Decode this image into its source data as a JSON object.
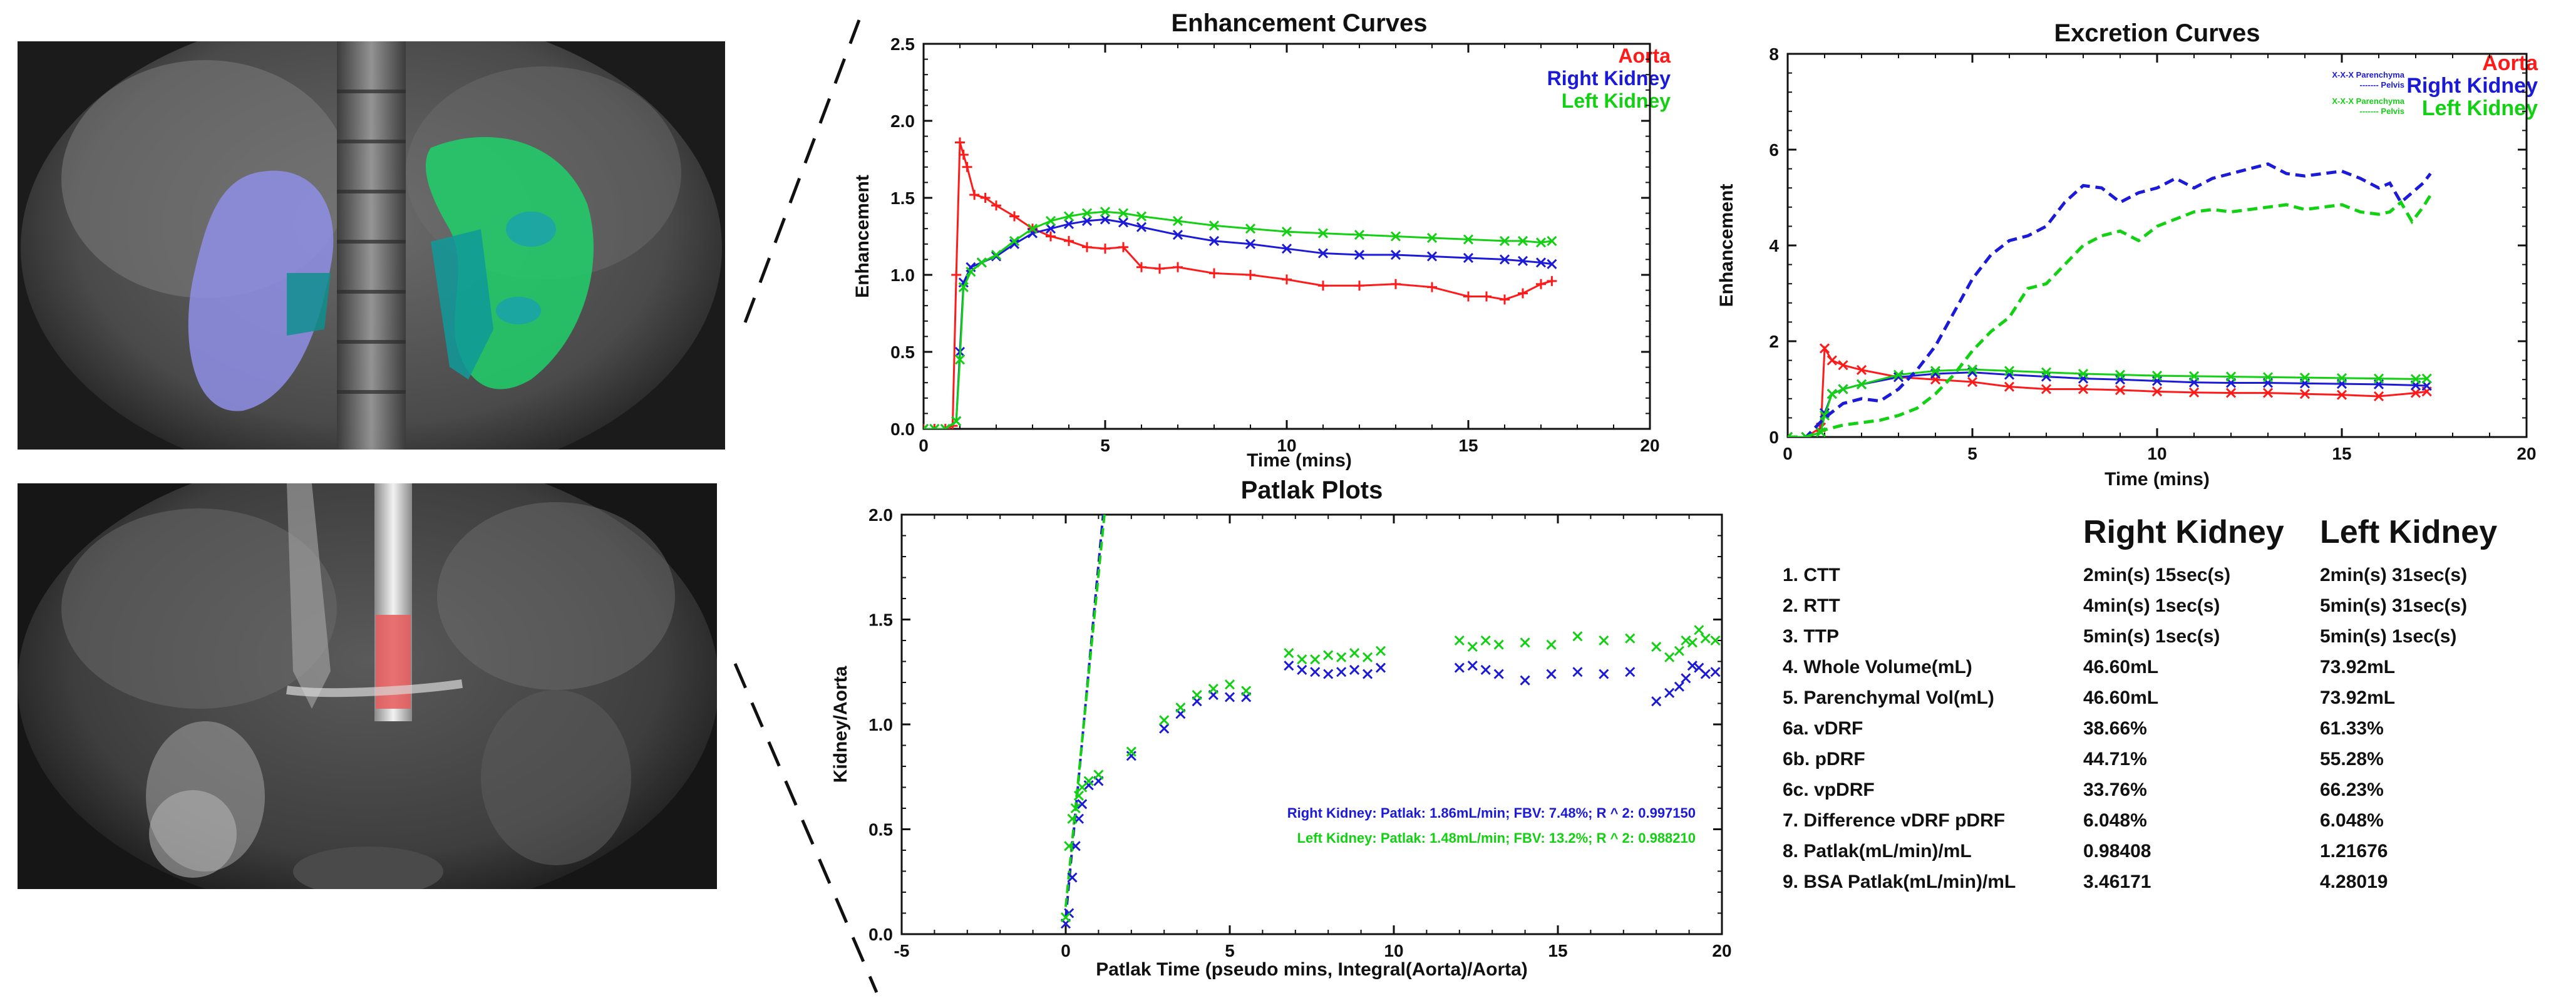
{
  "images": [
    {
      "name": "mri-coronal-kidneys",
      "labels": []
    },
    {
      "name": "mri-coronal-aorta",
      "labels": []
    }
  ],
  "colors": {
    "aorta": "#ff1a1a",
    "right_kidney": "#1a1ad8",
    "left_kidney": "#12d012"
  },
  "chart_data": [
    {
      "id": "enhancement",
      "type": "line",
      "title": "Enhancement Curves",
      "xlabel": "Time (mins)",
      "ylabel": "Enhancement",
      "xlim": [
        0,
        20
      ],
      "ylim": [
        0,
        2.5
      ],
      "xticks": [
        0,
        5,
        10,
        15,
        20
      ],
      "yticks": [
        0.0,
        0.5,
        1.0,
        1.5,
        2.0,
        2.5
      ],
      "xtick_labels": [
        "0",
        "5",
        "10",
        "15",
        "20"
      ],
      "ytick_labels": [
        "0.0",
        "0.5",
        "1.0",
        "1.5",
        "2.0",
        "2.5"
      ],
      "legend": [
        "Aorta",
        "Right Kidney",
        "Left Kidney"
      ],
      "series": [
        {
          "name": "Aorta",
          "color": "#ff1a1a",
          "marker": "+",
          "x": [
            0,
            0.3,
            0.6,
            0.8,
            0.9,
            1.0,
            1.1,
            1.2,
            1.4,
            1.7,
            2.0,
            2.5,
            3.0,
            3.5,
            4.0,
            4.5,
            5.0,
            5.5,
            6.0,
            6.5,
            7.0,
            8.0,
            9.0,
            10.0,
            11.0,
            12.0,
            13.0,
            14.0,
            15.0,
            15.5,
            16.0,
            16.5,
            17.0,
            17.3
          ],
          "y": [
            0,
            0,
            0,
            0.02,
            1.0,
            1.86,
            1.78,
            1.7,
            1.52,
            1.5,
            1.45,
            1.38,
            1.3,
            1.25,
            1.22,
            1.18,
            1.17,
            1.18,
            1.05,
            1.04,
            1.05,
            1.01,
            1.0,
            0.97,
            0.93,
            0.93,
            0.94,
            0.92,
            0.86,
            0.86,
            0.84,
            0.88,
            0.94,
            0.96
          ]
        },
        {
          "name": "Right Kidney",
          "color": "#1a1ad8",
          "marker": "x",
          "x": [
            0,
            0.3,
            0.6,
            0.9,
            1.0,
            1.1,
            1.3,
            1.6,
            2.0,
            2.5,
            3.0,
            3.5,
            4.0,
            4.5,
            5.0,
            5.5,
            6.0,
            7.0,
            8.0,
            9.0,
            10.0,
            11.0,
            12.0,
            13.0,
            14.0,
            15.0,
            16.0,
            16.5,
            17.0,
            17.3
          ],
          "y": [
            0,
            0,
            0,
            0.05,
            0.5,
            0.95,
            1.05,
            1.08,
            1.12,
            1.2,
            1.27,
            1.3,
            1.33,
            1.35,
            1.36,
            1.34,
            1.31,
            1.26,
            1.22,
            1.2,
            1.17,
            1.14,
            1.13,
            1.13,
            1.12,
            1.11,
            1.1,
            1.09,
            1.08,
            1.07
          ]
        },
        {
          "name": "Left Kidney",
          "color": "#12d012",
          "marker": "x",
          "x": [
            0,
            0.3,
            0.6,
            0.9,
            1.0,
            1.1,
            1.3,
            1.6,
            2.0,
            2.5,
            3.0,
            3.5,
            4.0,
            4.5,
            5.0,
            5.5,
            6.0,
            7.0,
            8.0,
            9.0,
            10.0,
            11.0,
            12.0,
            13.0,
            14.0,
            15.0,
            16.0,
            16.5,
            17.0,
            17.3
          ],
          "y": [
            0,
            0,
            0,
            0.05,
            0.45,
            0.92,
            1.02,
            1.08,
            1.13,
            1.22,
            1.3,
            1.35,
            1.38,
            1.4,
            1.41,
            1.4,
            1.38,
            1.35,
            1.32,
            1.3,
            1.28,
            1.27,
            1.26,
            1.25,
            1.24,
            1.23,
            1.22,
            1.22,
            1.21,
            1.22
          ]
        }
      ]
    },
    {
      "id": "excretion",
      "type": "line",
      "title": "Excretion Curves",
      "xlabel": "Time (mins)",
      "ylabel": "Enhancement",
      "xlim": [
        0,
        20
      ],
      "ylim": [
        0,
        8
      ],
      "xticks": [
        0,
        5,
        10,
        15,
        20
      ],
      "yticks": [
        0,
        2,
        4,
        6,
        8
      ],
      "xtick_labels": [
        "0",
        "5",
        "10",
        "15",
        "20"
      ],
      "ytick_labels": [
        "0",
        "2",
        "4",
        "6",
        "8"
      ],
      "legend": [
        "Aorta",
        "Right Kidney",
        "Left Kidney"
      ],
      "legend_small": [
        "X-X-X Parenchyma",
        "------- Pelvis",
        "X-X-X Parenchyma",
        "------- Pelvis"
      ],
      "series": [
        {
          "name": "Aorta",
          "color": "#ff1a1a",
          "marker": "x",
          "style": "solid",
          "x": [
            0,
            0.5,
            0.9,
            1.0,
            1.2,
            1.5,
            2.0,
            3.0,
            4.0,
            5.0,
            6.0,
            7.0,
            8.0,
            9.0,
            10.0,
            11.0,
            12.0,
            13.0,
            14.0,
            15.0,
            16.0,
            17.0,
            17.3
          ],
          "y": [
            0,
            0,
            0.2,
            1.85,
            1.6,
            1.5,
            1.4,
            1.25,
            1.2,
            1.15,
            1.05,
            1.0,
            1.0,
            0.98,
            0.95,
            0.93,
            0.92,
            0.92,
            0.9,
            0.88,
            0.85,
            0.92,
            0.95
          ]
        },
        {
          "name": "Right Kidney Parenchyma",
          "color": "#1a1ad8",
          "marker": "x",
          "style": "solid",
          "x": [
            0,
            0.5,
            0.9,
            1.0,
            1.2,
            1.5,
            2.0,
            3.0,
            4.0,
            5.0,
            6.0,
            7.0,
            8.0,
            9.0,
            10.0,
            11.0,
            12.0,
            13.0,
            14.0,
            15.0,
            16.0,
            17.0,
            17.3
          ],
          "y": [
            0,
            0,
            0.1,
            0.5,
            0.9,
            1.0,
            1.1,
            1.25,
            1.32,
            1.35,
            1.3,
            1.26,
            1.22,
            1.2,
            1.17,
            1.14,
            1.13,
            1.13,
            1.12,
            1.11,
            1.1,
            1.08,
            1.07
          ]
        },
        {
          "name": "Left Kidney Parenchyma",
          "color": "#12d012",
          "marker": "x",
          "style": "solid",
          "x": [
            0,
            0.5,
            0.9,
            1.0,
            1.2,
            1.5,
            2.0,
            3.0,
            4.0,
            5.0,
            6.0,
            7.0,
            8.0,
            9.0,
            10.0,
            11.0,
            12.0,
            13.0,
            14.0,
            15.0,
            16.0,
            17.0,
            17.3
          ],
          "y": [
            0,
            0,
            0.1,
            0.45,
            0.9,
            1.0,
            1.1,
            1.3,
            1.38,
            1.41,
            1.38,
            1.35,
            1.32,
            1.3,
            1.28,
            1.27,
            1.26,
            1.25,
            1.24,
            1.23,
            1.22,
            1.21,
            1.22
          ]
        },
        {
          "name": "Right Kidney Pelvis",
          "color": "#1a1ad8",
          "marker": "",
          "style": "dashed",
          "x": [
            0,
            0.5,
            1.0,
            1.5,
            2.0,
            2.5,
            3.0,
            3.5,
            4.0,
            4.5,
            5.0,
            5.5,
            6.0,
            6.5,
            7.0,
            7.5,
            8.0,
            8.5,
            9.0,
            9.5,
            10.0,
            10.5,
            11.0,
            11.5,
            12.0,
            12.5,
            13.0,
            13.5,
            14.0,
            14.5,
            15.0,
            15.5,
            16.0,
            16.3,
            16.6,
            16.9,
            17.2,
            17.4
          ],
          "y": [
            0,
            0,
            0.4,
            0.7,
            0.8,
            0.75,
            1.0,
            1.4,
            1.9,
            2.6,
            3.3,
            3.8,
            4.1,
            4.2,
            4.4,
            4.9,
            5.25,
            5.2,
            4.9,
            5.1,
            5.2,
            5.4,
            5.2,
            5.4,
            5.5,
            5.6,
            5.7,
            5.5,
            5.45,
            5.5,
            5.55,
            5.4,
            5.2,
            5.3,
            4.9,
            5.1,
            5.3,
            5.5
          ]
        },
        {
          "name": "Left Kidney Pelvis",
          "color": "#12d012",
          "marker": "",
          "style": "dashed",
          "x": [
            0,
            0.5,
            1.0,
            1.5,
            2.0,
            2.5,
            3.0,
            3.5,
            4.0,
            4.5,
            5.0,
            5.5,
            6.0,
            6.5,
            7.0,
            7.5,
            8.0,
            8.5,
            9.0,
            9.5,
            10.0,
            10.5,
            11.0,
            11.5,
            12.0,
            12.5,
            13.0,
            13.5,
            14.0,
            14.5,
            15.0,
            15.5,
            16.0,
            16.3,
            16.6,
            16.9,
            17.2,
            17.4
          ],
          "y": [
            0,
            0,
            0.15,
            0.25,
            0.3,
            0.35,
            0.45,
            0.6,
            0.9,
            1.3,
            1.8,
            2.2,
            2.5,
            3.1,
            3.2,
            3.6,
            4.0,
            4.2,
            4.3,
            4.1,
            4.4,
            4.55,
            4.7,
            4.75,
            4.7,
            4.75,
            4.8,
            4.85,
            4.75,
            4.8,
            4.85,
            4.7,
            4.65,
            4.7,
            4.9,
            4.5,
            4.8,
            5.05
          ]
        }
      ]
    },
    {
      "id": "patlak",
      "type": "scatter",
      "title": "Patlak Plots",
      "xlabel": "Patlak Time (pseudo mins, Integral(Aorta)/Aorta)",
      "ylabel": "Kidney/Aorta",
      "xlim": [
        -5,
        20
      ],
      "ylim": [
        0,
        2.0
      ],
      "xticks": [
        -5,
        0,
        5,
        10,
        15,
        20
      ],
      "yticks": [
        0.0,
        0.5,
        1.0,
        1.5,
        2.0
      ],
      "xtick_labels": [
        "-5",
        "0",
        "5",
        "10",
        "15",
        "20"
      ],
      "ytick_labels": [
        "0.0",
        "0.5",
        "1.0",
        "1.5",
        "2.0"
      ],
      "annotations": [
        {
          "text": "Right Kidney: Patlak: 1.86mL/min; FBV: 7.48%; R ^ 2: 0.997150",
          "color": "#1a1ad8"
        },
        {
          "text": "Left Kidney: Patlak: 1.48mL/min; FBV: 13.2%; R ^ 2: 0.988210",
          "color": "#12d012"
        }
      ],
      "fit_lines": [
        {
          "name": "Right Kidney fit",
          "color": "#1a1ad8",
          "x": [
            0,
            1.14
          ],
          "y": [
            0.075,
            2.0
          ]
        },
        {
          "name": "Left Kidney fit",
          "color": "#12d012",
          "x": [
            0,
            1.18
          ],
          "y": [
            0.13,
            2.0
          ]
        }
      ],
      "series": [
        {
          "name": "Right Kidney",
          "color": "#1a1ad8",
          "marker": "x",
          "x": [
            0,
            0.1,
            0.2,
            0.3,
            0.4,
            0.5,
            0.7,
            1.0,
            2.0,
            3.0,
            3.5,
            4.0,
            4.5,
            5.0,
            5.5,
            6.8,
            7.2,
            7.6,
            8.0,
            8.4,
            8.8,
            9.2,
            9.6,
            12.0,
            12.4,
            12.8,
            13.2,
            14.0,
            14.8,
            15.6,
            16.4,
            17.2,
            18.0,
            18.4,
            18.7,
            18.9,
            19.1,
            19.3,
            19.5,
            19.8
          ],
          "y": [
            0.05,
            0.1,
            0.27,
            0.42,
            0.55,
            0.62,
            0.71,
            0.73,
            0.85,
            0.98,
            1.05,
            1.11,
            1.14,
            1.13,
            1.13,
            1.28,
            1.26,
            1.25,
            1.24,
            1.25,
            1.26,
            1.24,
            1.27,
            1.27,
            1.28,
            1.26,
            1.24,
            1.21,
            1.24,
            1.25,
            1.24,
            1.25,
            1.11,
            1.15,
            1.18,
            1.22,
            1.28,
            1.27,
            1.24,
            1.25
          ]
        },
        {
          "name": "Left Kidney",
          "color": "#12d012",
          "marker": "x",
          "x": [
            0,
            0.1,
            0.2,
            0.3,
            0.4,
            0.5,
            0.7,
            1.0,
            2.0,
            3.0,
            3.5,
            4.0,
            4.5,
            5.0,
            5.5,
            6.8,
            7.2,
            7.6,
            8.0,
            8.4,
            8.8,
            9.2,
            9.6,
            12.0,
            12.4,
            12.8,
            13.2,
            14.0,
            14.8,
            15.6,
            16.4,
            17.2,
            18.0,
            18.4,
            18.7,
            18.9,
            19.1,
            19.3,
            19.5,
            19.8
          ],
          "y": [
            0.08,
            0.42,
            0.55,
            0.6,
            0.66,
            0.7,
            0.73,
            0.76,
            0.87,
            1.02,
            1.08,
            1.14,
            1.17,
            1.19,
            1.16,
            1.34,
            1.31,
            1.31,
            1.33,
            1.32,
            1.34,
            1.32,
            1.35,
            1.4,
            1.37,
            1.4,
            1.38,
            1.39,
            1.38,
            1.42,
            1.4,
            1.41,
            1.37,
            1.32,
            1.35,
            1.4,
            1.39,
            1.45,
            1.41,
            1.4
          ]
        }
      ]
    }
  ],
  "results_table": {
    "headers": [
      "",
      "Right Kidney",
      "Left Kidney"
    ],
    "rows": [
      [
        "1. CTT",
        "2min(s) 15sec(s)",
        "2min(s) 31sec(s)"
      ],
      [
        "2. RTT",
        "4min(s) 1sec(s)",
        "5min(s) 31sec(s)"
      ],
      [
        "3. TTP",
        "5min(s) 1sec(s)",
        "5min(s) 1sec(s)"
      ],
      [
        "4. Whole Volume(mL)",
        "46.60mL",
        "73.92mL"
      ],
      [
        "5. Parenchymal Vol(mL)",
        "46.60mL",
        "73.92mL"
      ],
      [
        "6a. vDRF",
        "38.66%",
        "61.33%"
      ],
      [
        "6b. pDRF",
        "44.71%",
        "55.28%"
      ],
      [
        "6c. vpDRF",
        "33.76%",
        "66.23%"
      ],
      [
        "7. Difference vDRF pDRF",
        "6.048%",
        "6.048%"
      ],
      [
        "8. Patlak(mL/min)/mL",
        "0.98408",
        "1.21676"
      ],
      [
        "9. BSA Patlak(mL/min)/mL",
        "3.46171",
        "4.28019"
      ]
    ]
  }
}
